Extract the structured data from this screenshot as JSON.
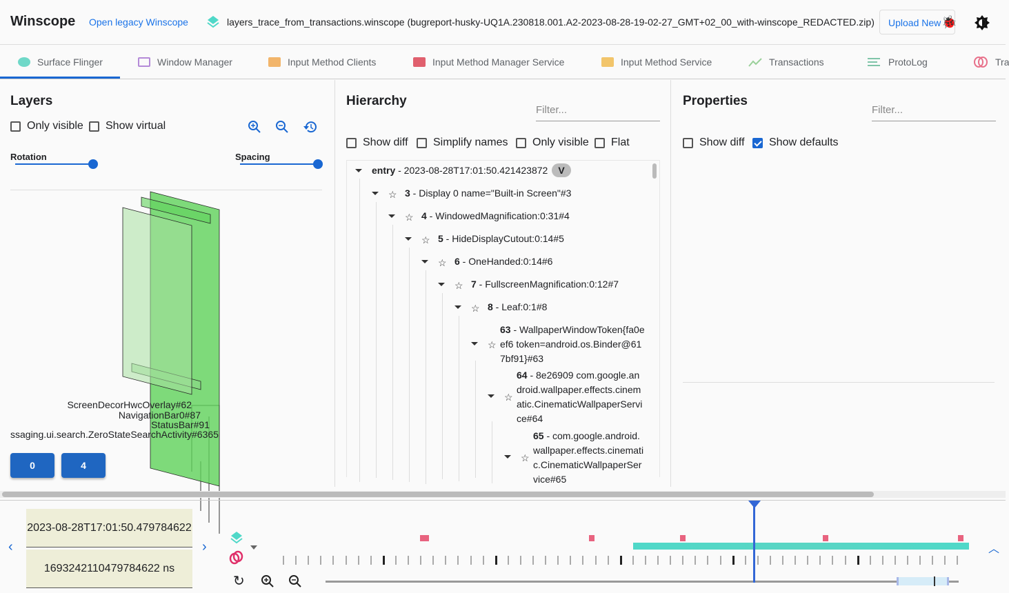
{
  "header": {
    "title": "Winscope",
    "legacy_link": "Open legacy Winscope",
    "file_name": "layers_trace_from_transactions.winscope (bugreport-husky-UQ1A.230818.001.A2-2023-08-28-19-02-27_GMT+02_00_with-winscope_REDACTED.zip)",
    "upload_label": "Upload New",
    "icons": [
      "layers-icon",
      "bug-icon",
      "theme-toggle-icon"
    ]
  },
  "tabs": [
    {
      "label": "Surface Flinger",
      "color": "#6fd8c8",
      "active": true
    },
    {
      "label": "Window Manager",
      "color": "#b48ad8"
    },
    {
      "label": "Input Method Clients",
      "color": "#f2b56b"
    },
    {
      "label": "Input Method Manager Service",
      "color": "#e0606e"
    },
    {
      "label": "Input Method Service",
      "color": "#f2c56b"
    },
    {
      "label": "Transactions",
      "color": "#9ad09a"
    },
    {
      "label": "ProtoLog",
      "color": "#7fc4a8"
    },
    {
      "label": "Tra",
      "color": "#e8708a"
    }
  ],
  "layers": {
    "title": "Layers",
    "only_visible": "Only visible",
    "show_virtual": "Show virtual",
    "rotation": "Rotation",
    "spacing": "Spacing",
    "rotation_value": 1.0,
    "spacing_value": 1.0,
    "labels": [
      "ScreenDecorHwcOverlay#62",
      "NavigationBar0#87",
      "StatusBar#91",
      "ssaging.ui.search.ZeroStateSearchActivity#6365"
    ],
    "display_buttons": [
      "0",
      "4"
    ]
  },
  "hierarchy": {
    "title": "Hierarchy",
    "filter_placeholder": "Filter...",
    "show_diff": "Show diff",
    "simplify_names": "Simplify names",
    "only_visible": "Only visible",
    "flat": "Flat",
    "entry": {
      "label": "entry",
      "time": " - 2023-08-28T17:01:50.421423872",
      "badge": "V"
    },
    "nodes": [
      {
        "id": "3",
        "name": " - Display 0 name=\"Built-in Screen\"#3"
      },
      {
        "id": "4",
        "name": " - WindowedMagnification:0:31#4"
      },
      {
        "id": "5",
        "name": " - HideDisplayCutout:0:14#5"
      },
      {
        "id": "6",
        "name": " - OneHanded:0:14#6"
      },
      {
        "id": "7",
        "name": " - FullscreenMagnification:0:12#7"
      },
      {
        "id": "8",
        "name": " - Leaf:0:1#8"
      },
      {
        "id": "63",
        "name": " - WallpaperWindowToken{fa0eef6 token=android.os.Binder@617bf91}#63"
      },
      {
        "id": "64",
        "name": " - 8e26909 com.google.android.wallpaper.effects.cinematic.CinematicWallpaperService#64"
      },
      {
        "id": "65",
        "name": " - com.google.android.wallpaper.effects.cinematic.CinematicWallpaperService#65"
      }
    ]
  },
  "properties": {
    "title": "Properties",
    "filter_placeholder": "Filter...",
    "show_diff": "Show diff",
    "show_defaults": "Show defaults",
    "show_defaults_checked": true
  },
  "timeline": {
    "timestamp": "2023-08-28T17:01:50.479784622",
    "timestamp_ns": "1693242110479784622 ns",
    "colors": {
      "cursor": "#3367d6",
      "transactions": "#e8637f",
      "surfaceflinger": "#4fd8c8"
    }
  }
}
